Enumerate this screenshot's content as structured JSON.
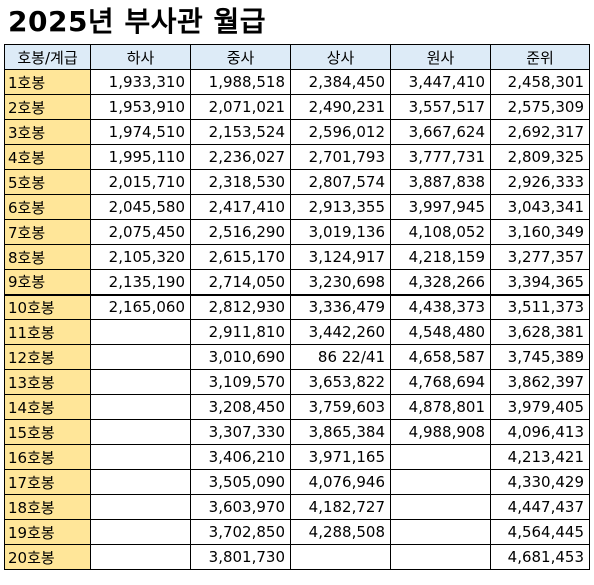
{
  "title": "2025년 부사관 월급",
  "table": {
    "headers": [
      "호봉/계급",
      "하사",
      "중사",
      "상사",
      "원사",
      "준위"
    ],
    "rows": [
      [
        "1호봉",
        "1,933,310",
        "1,988,518",
        "2,384,450",
        "3,447,410",
        "2,458,301"
      ],
      [
        "2호봉",
        "1,953,910",
        "2,071,021",
        "2,490,231",
        "3,557,517",
        "2,575,309"
      ],
      [
        "3호봉",
        "1,974,510",
        "2,153,524",
        "2,596,012",
        "3,667,624",
        "2,692,317"
      ],
      [
        "4호봉",
        "1,995,110",
        "2,236,027",
        "2,701,793",
        "3,777,731",
        "2,809,325"
      ],
      [
        "5호봉",
        "2,015,710",
        "2,318,530",
        "2,807,574",
        "3,887,838",
        "2,926,333"
      ],
      [
        "6호봉",
        "2,045,580",
        "2,417,410",
        "2,913,355",
        "3,997,945",
        "3,043,341"
      ],
      [
        "7호봉",
        "2,075,450",
        "2,516,290",
        "3,019,136",
        "4,108,052",
        "3,160,349"
      ],
      [
        "8호봉",
        "2,105,320",
        "2,615,170",
        "3,124,917",
        "4,218,159",
        "3,277,357"
      ],
      [
        "9호봉",
        "2,135,190",
        "2,714,050",
        "3,230,698",
        "4,328,266",
        "3,394,365"
      ],
      [
        "10호봉",
        "2,165,060",
        "2,812,930",
        "3,336,479",
        "4,438,373",
        "3,511,373"
      ],
      [
        "11호봉",
        "",
        "2,911,810",
        "3,442,260",
        "4,548,480",
        "3,628,381"
      ],
      [
        "12호봉",
        "",
        "3,010,690",
        "86 22/41",
        "4,658,587",
        "3,745,389"
      ],
      [
        "13호봉",
        "",
        "3,109,570",
        "3,653,822",
        "4,768,694",
        "3,862,397"
      ],
      [
        "14호봉",
        "",
        "3,208,450",
        "3,759,603",
        "4,878,801",
        "3,979,405"
      ],
      [
        "15호봉",
        "",
        "3,307,330",
        "3,865,384",
        "4,988,908",
        "4,096,413"
      ],
      [
        "16호봉",
        "",
        "3,406,210",
        "3,971,165",
        "",
        "4,213,421"
      ],
      [
        "17호봉",
        "",
        "3,505,090",
        "4,076,946",
        "",
        "4,330,429"
      ],
      [
        "18호봉",
        "",
        "3,603,970",
        "4,182,727",
        "",
        "4,447,437"
      ],
      [
        "19호봉",
        "",
        "3,702,850",
        "4,288,508",
        "",
        "4,564,445"
      ],
      [
        "20호봉",
        "",
        "3,801,730",
        "",
        "",
        "4,681,453"
      ]
    ]
  },
  "colors": {
    "header_bg": "#ddebf7",
    "step_bg": "#ffe699",
    "border": "#000000"
  }
}
